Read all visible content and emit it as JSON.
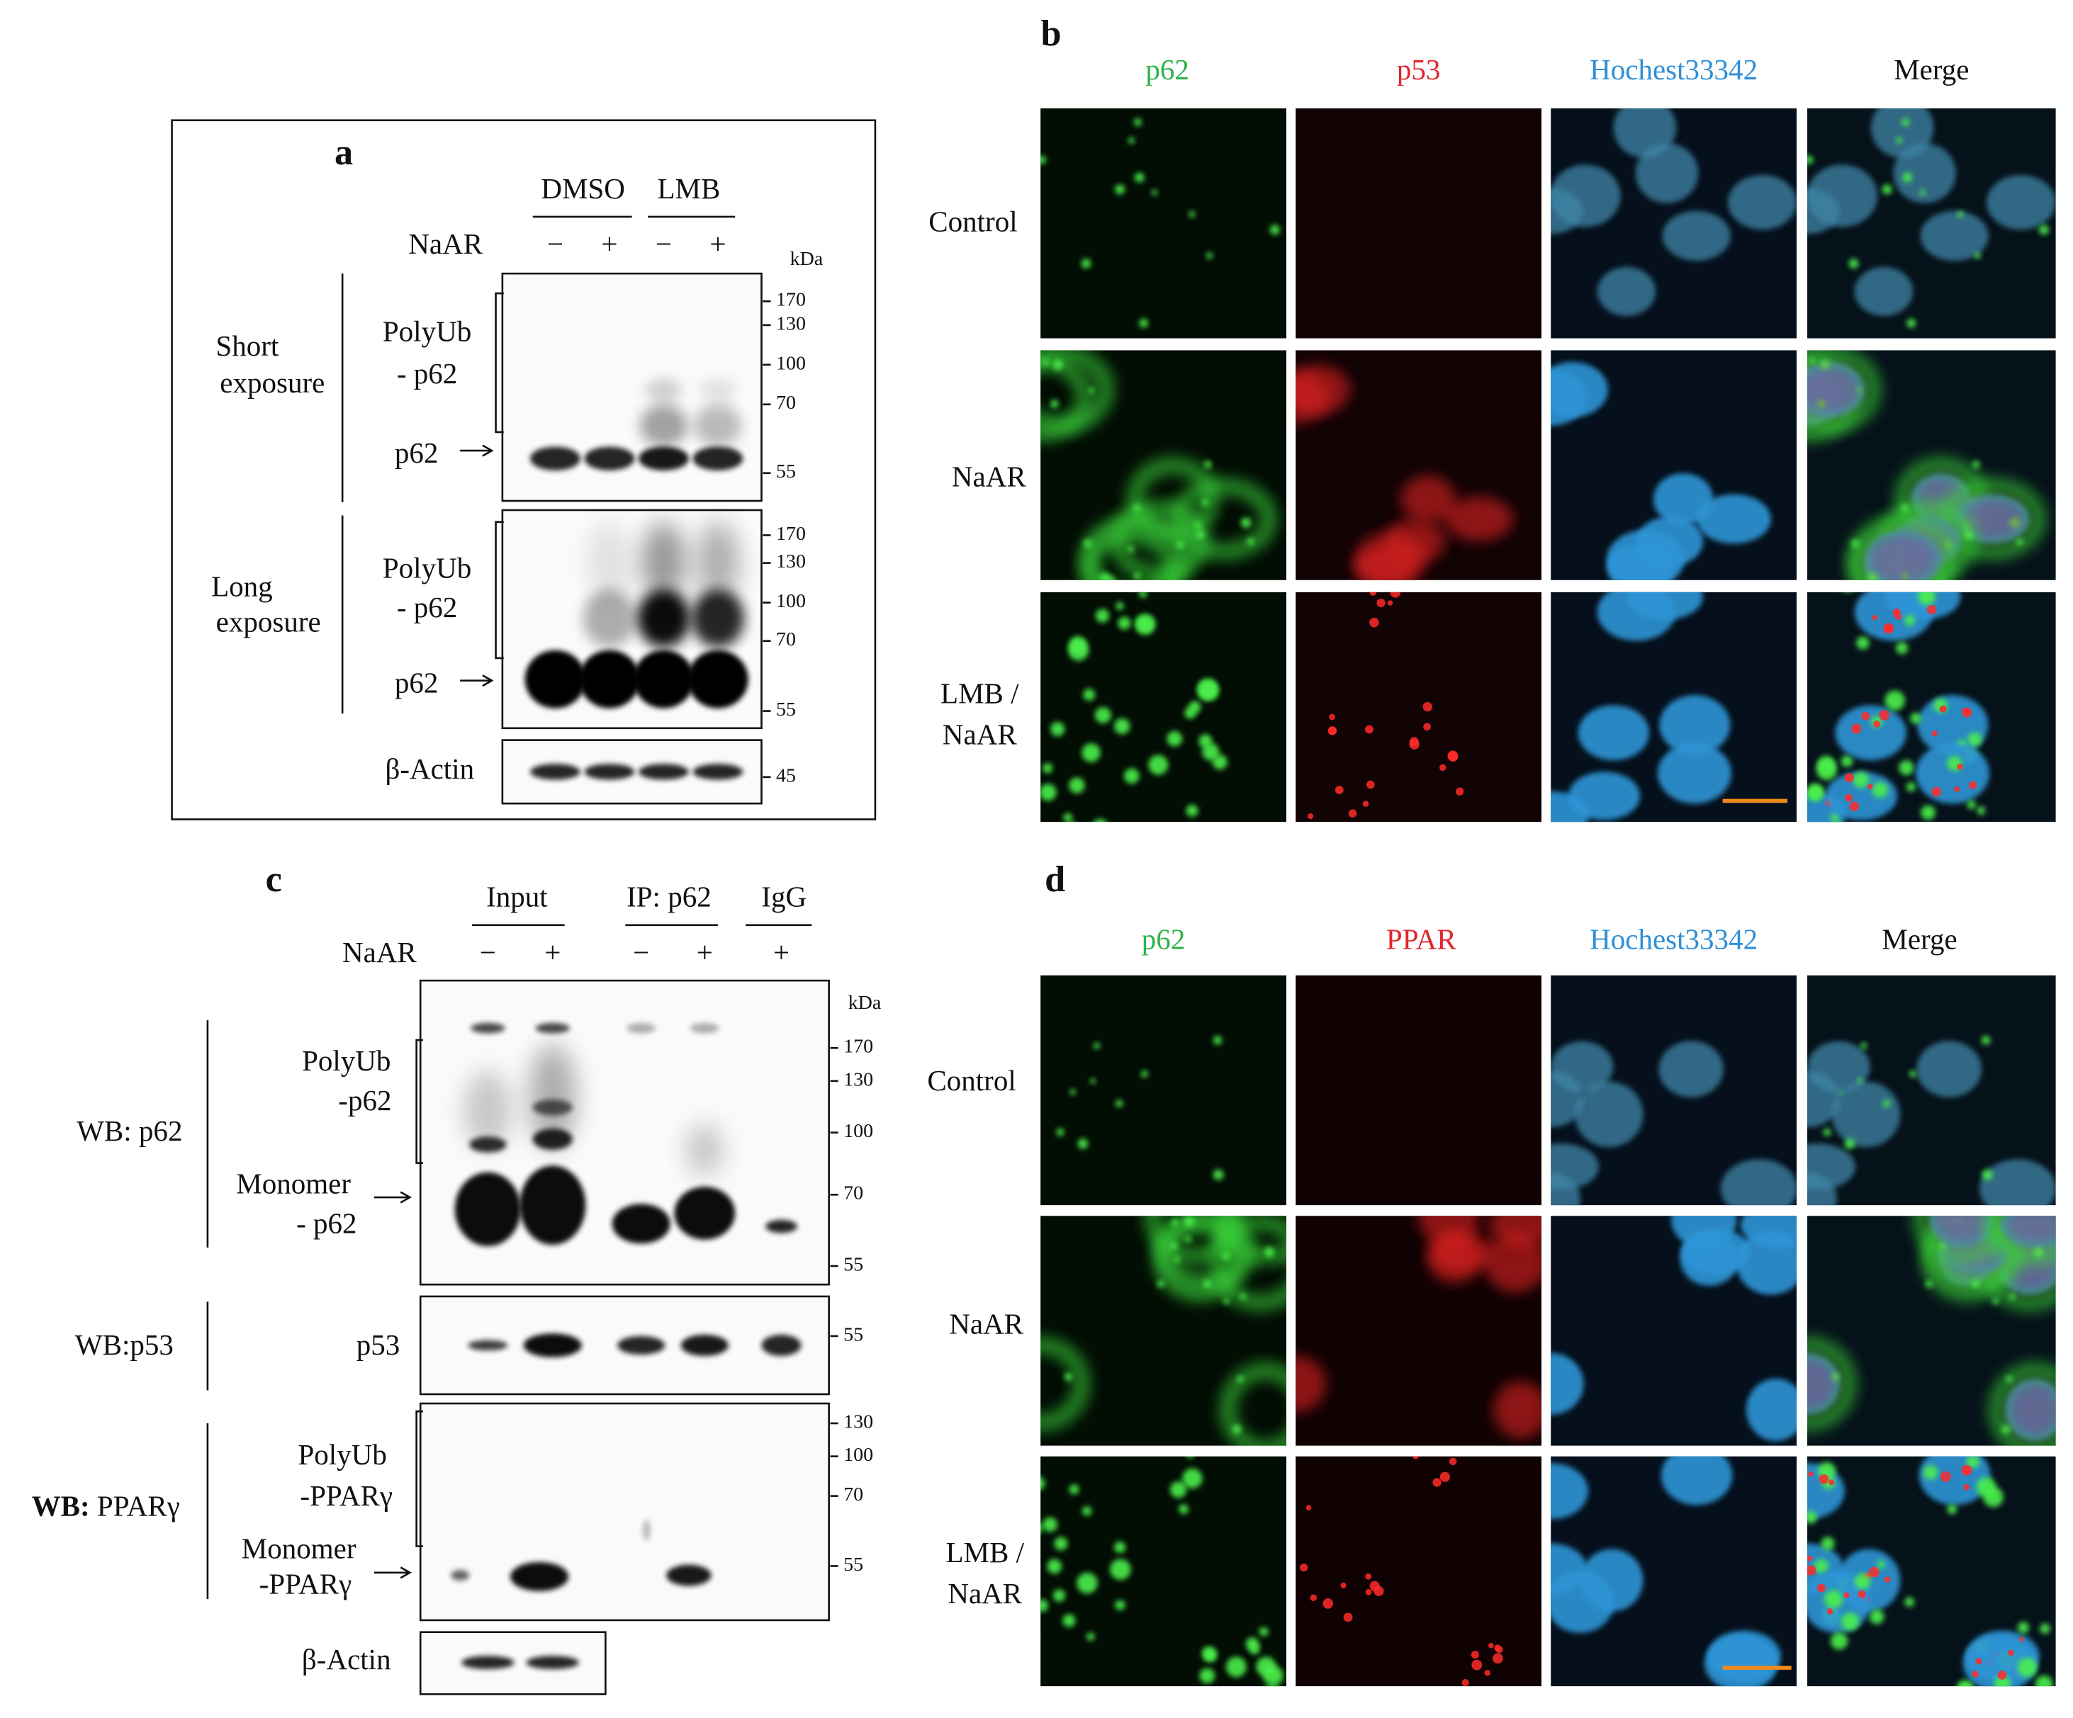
{
  "panel_a": {
    "label": "a",
    "groups": [
      "DMSO",
      "LMB"
    ],
    "row_label": "NaAR",
    "lanes": [
      "−",
      "+",
      "−",
      "+"
    ],
    "unit": "kDa",
    "short_exposure": {
      "title": [
        "Short",
        "exposure"
      ],
      "bands": [
        "PolyUb",
        "- p62"
      ],
      "arrow": "p62",
      "markers": [
        170,
        130,
        100,
        70,
        55
      ]
    },
    "long_exposure": {
      "title": [
        "Long",
        "exposure"
      ],
      "bands": [
        "PolyUb",
        "- p62"
      ],
      "arrow": "p62",
      "markers": [
        170,
        130,
        100,
        70,
        55
      ]
    },
    "actin": {
      "label": "β-Actin",
      "markers": [
        45
      ]
    }
  },
  "panel_b": {
    "label": "b",
    "channels": [
      "p62",
      "p53",
      "Hochest33342",
      "Merge"
    ],
    "rows": [
      [
        "Control"
      ],
      [
        "NaAR"
      ],
      [
        "LMB /",
        "NaAR"
      ]
    ]
  },
  "panel_c": {
    "label": "c",
    "groups": [
      "Input",
      "IP: p62",
      "IgG"
    ],
    "row_label": "NaAR",
    "lanes": [
      "−",
      "+",
      "−",
      "+",
      "+"
    ],
    "unit": "kDa",
    "wb_p62": {
      "title": "WB: p62",
      "bands": [
        "PolyUb",
        "-p62"
      ],
      "arrow": [
        "Monomer",
        "- p62"
      ],
      "markers": [
        170,
        130,
        100,
        70,
        55
      ]
    },
    "wb_p53": {
      "title": "WB:p53",
      "band": "p53",
      "markers": [
        55
      ]
    },
    "wb_ppar": {
      "title": [
        "WB:",
        "PPARγ"
      ],
      "bands": [
        "PolyUb",
        "-PPARγ"
      ],
      "arrow": [
        "Monomer",
        "-PPARγ"
      ],
      "markers": [
        130,
        100,
        70,
        55
      ]
    },
    "actin": {
      "label": "β-Actin"
    }
  },
  "panel_d": {
    "label": "d",
    "channels": [
      "p62",
      "PPAR",
      "Hochest33342",
      "Merge"
    ],
    "rows": [
      [
        "Control"
      ],
      [
        "NaAR"
      ],
      [
        "LMB /",
        "NaAR"
      ]
    ]
  }
}
